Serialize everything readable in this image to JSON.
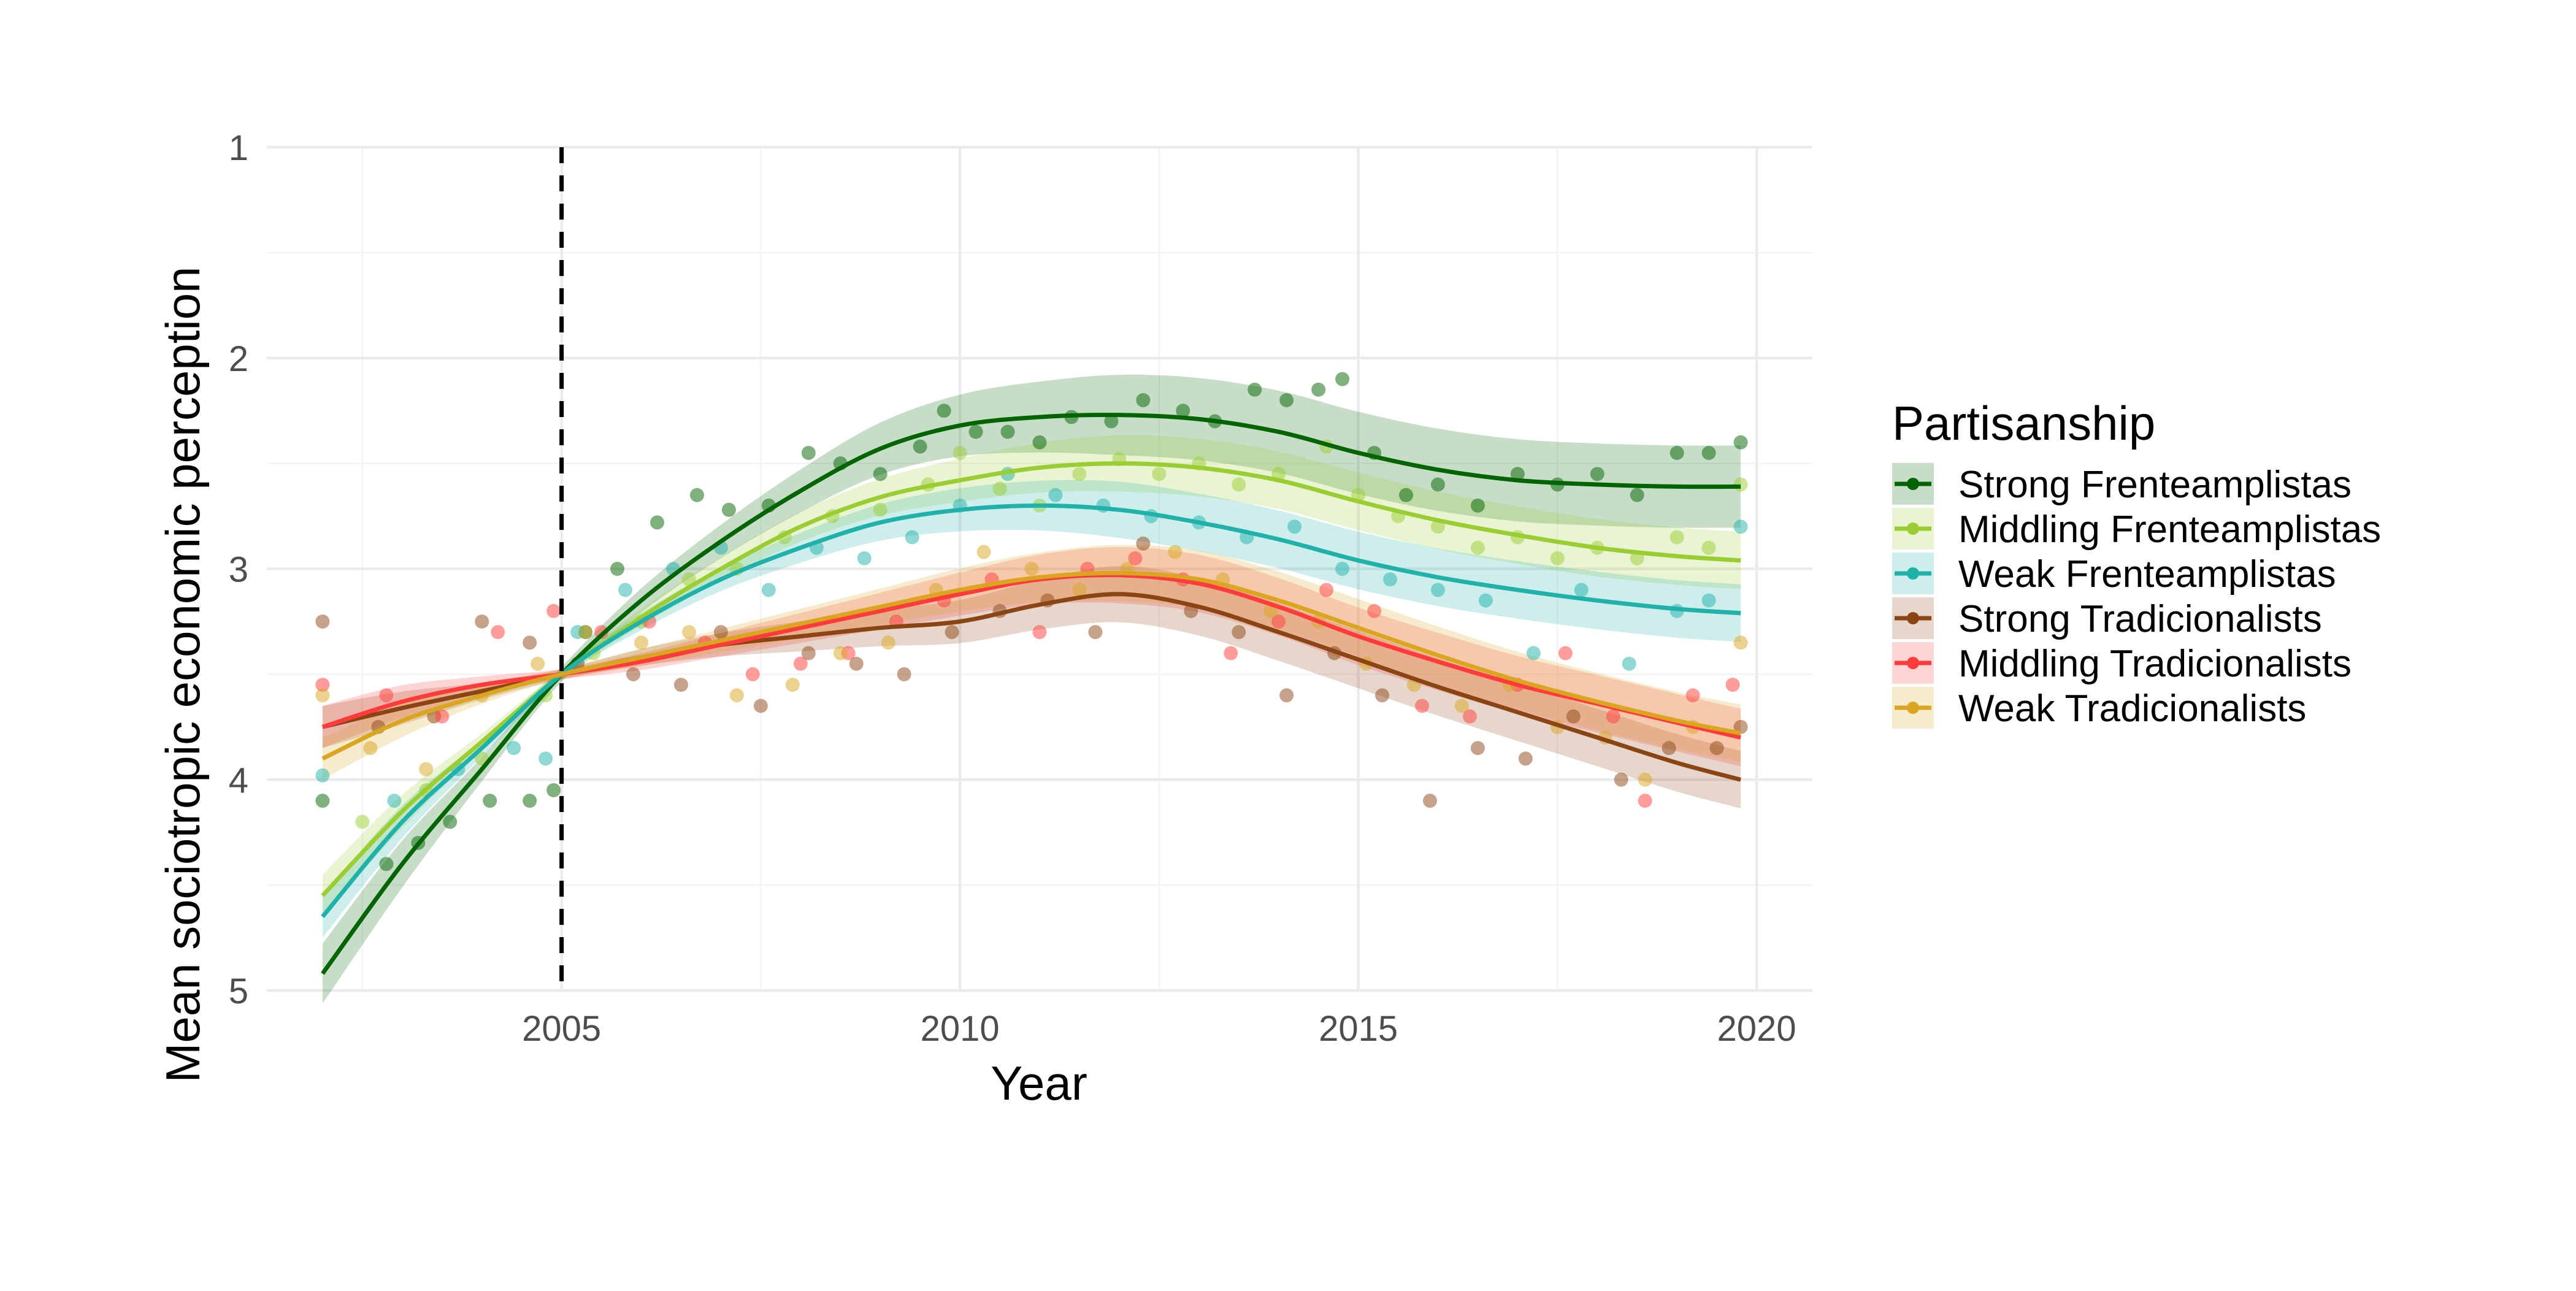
{
  "chart_data": {
    "type": "scatter",
    "xlabel": "Year",
    "ylabel": "Mean sociotropic economic perception",
    "xlim": [
      2001.3,
      2020.7
    ],
    "ylim": [
      1,
      5
    ],
    "y_reversed": true,
    "x_ticks": [
      2005,
      2010,
      2015,
      2020
    ],
    "y_ticks": [
      1,
      2,
      3,
      4,
      5
    ],
    "grid": true,
    "reference_line": {
      "x": 2005,
      "style": "dashed",
      "color": "#000000"
    },
    "legend": {
      "title": "Partisanship",
      "placement": "right"
    },
    "series": [
      {
        "name": "Strong Frenteamplistas",
        "color": "#006400",
        "smooth_x": [
          2002,
          2003,
          2004,
          2005,
          2006,
          2007,
          2008,
          2009,
          2010,
          2011,
          2012,
          2013,
          2014,
          2015,
          2016,
          2017,
          2018,
          2019,
          2019.8
        ],
        "smooth_y": [
          4.92,
          4.4,
          3.95,
          3.5,
          3.15,
          2.87,
          2.63,
          2.43,
          2.32,
          2.28,
          2.27,
          2.29,
          2.35,
          2.45,
          2.53,
          2.58,
          2.6,
          2.61,
          2.61
        ],
        "band": 0.1,
        "points": [
          [
            2002,
            4.1
          ],
          [
            2002.8,
            4.4
          ],
          [
            2003.2,
            4.3
          ],
          [
            2003.6,
            4.2
          ],
          [
            2004.1,
            4.1
          ],
          [
            2004.6,
            4.1
          ],
          [
            2004.9,
            4.05
          ],
          [
            2005.3,
            3.3
          ],
          [
            2005.7,
            3.0
          ],
          [
            2006.2,
            2.78
          ],
          [
            2006.7,
            2.65
          ],
          [
            2007.1,
            2.72
          ],
          [
            2007.6,
            2.7
          ],
          [
            2008.1,
            2.45
          ],
          [
            2008.5,
            2.5
          ],
          [
            2009.0,
            2.55
          ],
          [
            2009.5,
            2.42
          ],
          [
            2009.8,
            2.25
          ],
          [
            2010.2,
            2.35
          ],
          [
            2010.6,
            2.35
          ],
          [
            2011.0,
            2.4
          ],
          [
            2011.4,
            2.28
          ],
          [
            2011.9,
            2.3
          ],
          [
            2012.3,
            2.2
          ],
          [
            2012.8,
            2.25
          ],
          [
            2013.2,
            2.3
          ],
          [
            2013.7,
            2.15
          ],
          [
            2014.1,
            2.2
          ],
          [
            2014.5,
            2.15
          ],
          [
            2014.8,
            2.1
          ],
          [
            2015.2,
            2.45
          ],
          [
            2015.6,
            2.65
          ],
          [
            2016.0,
            2.6
          ],
          [
            2016.5,
            2.7
          ],
          [
            2017.0,
            2.55
          ],
          [
            2017.5,
            2.6
          ],
          [
            2018.0,
            2.55
          ],
          [
            2018.5,
            2.65
          ],
          [
            2019.0,
            2.45
          ],
          [
            2019.4,
            2.45
          ],
          [
            2019.8,
            2.4
          ]
        ]
      },
      {
        "name": "Middling Frenteamplistas",
        "color": "#9acd32",
        "smooth_x": [
          2002,
          2003,
          2004,
          2005,
          2006,
          2007,
          2008,
          2009,
          2010,
          2011,
          2012,
          2013,
          2014,
          2015,
          2016,
          2017,
          2018,
          2019,
          2019.8
        ],
        "smooth_y": [
          4.55,
          4.15,
          3.82,
          3.5,
          3.23,
          3.0,
          2.8,
          2.66,
          2.58,
          2.52,
          2.5,
          2.52,
          2.58,
          2.68,
          2.77,
          2.84,
          2.9,
          2.94,
          2.96
        ],
        "band": 0.07,
        "points": [
          [
            2002.5,
            4.2
          ],
          [
            2003.3,
            4.05
          ],
          [
            2004.0,
            3.9
          ],
          [
            2004.8,
            3.6
          ],
          [
            2005.4,
            3.4
          ],
          [
            2006.0,
            3.25
          ],
          [
            2006.6,
            3.05
          ],
          [
            2007.2,
            3.0
          ],
          [
            2007.8,
            2.85
          ],
          [
            2008.4,
            2.75
          ],
          [
            2009.0,
            2.72
          ],
          [
            2009.6,
            2.6
          ],
          [
            2010.0,
            2.45
          ],
          [
            2010.5,
            2.62
          ],
          [
            2011.0,
            2.7
          ],
          [
            2011.5,
            2.55
          ],
          [
            2012.0,
            2.48
          ],
          [
            2012.5,
            2.55
          ],
          [
            2013.0,
            2.5
          ],
          [
            2013.5,
            2.6
          ],
          [
            2014.0,
            2.55
          ],
          [
            2014.6,
            2.42
          ],
          [
            2015.0,
            2.65
          ],
          [
            2015.5,
            2.75
          ],
          [
            2016.0,
            2.8
          ],
          [
            2016.5,
            2.9
          ],
          [
            2017.0,
            2.85
          ],
          [
            2017.5,
            2.95
          ],
          [
            2018.0,
            2.9
          ],
          [
            2018.5,
            2.95
          ],
          [
            2019.0,
            2.85
          ],
          [
            2019.4,
            2.9
          ],
          [
            2019.8,
            2.6
          ]
        ]
      },
      {
        "name": "Weak Frenteamplistas",
        "color": "#20b2aa",
        "smooth_x": [
          2002,
          2003,
          2004,
          2005,
          2006,
          2007,
          2008,
          2009,
          2010,
          2011,
          2012,
          2013,
          2014,
          2015,
          2016,
          2017,
          2018,
          2019,
          2019.8
        ],
        "smooth_y": [
          4.65,
          4.2,
          3.85,
          3.5,
          3.25,
          3.05,
          2.9,
          2.78,
          2.72,
          2.7,
          2.72,
          2.78,
          2.86,
          2.96,
          3.04,
          3.1,
          3.15,
          3.19,
          3.21
        ],
        "band": 0.07,
        "points": [
          [
            2002,
            3.98
          ],
          [
            2002.9,
            4.1
          ],
          [
            2003.7,
            3.95
          ],
          [
            2004.4,
            3.85
          ],
          [
            2004.8,
            3.9
          ],
          [
            2005.2,
            3.3
          ],
          [
            2005.8,
            3.1
          ],
          [
            2006.4,
            3.0
          ],
          [
            2007.0,
            2.9
          ],
          [
            2007.6,
            3.1
          ],
          [
            2008.2,
            2.9
          ],
          [
            2008.8,
            2.95
          ],
          [
            2009.4,
            2.85
          ],
          [
            2010.0,
            2.7
          ],
          [
            2010.6,
            2.55
          ],
          [
            2011.2,
            2.65
          ],
          [
            2011.8,
            2.7
          ],
          [
            2012.4,
            2.75
          ],
          [
            2013.0,
            2.78
          ],
          [
            2013.6,
            2.85
          ],
          [
            2014.2,
            2.8
          ],
          [
            2014.8,
            3.0
          ],
          [
            2015.4,
            3.05
          ],
          [
            2016.0,
            3.1
          ],
          [
            2016.6,
            3.15
          ],
          [
            2017.2,
            3.4
          ],
          [
            2017.8,
            3.1
          ],
          [
            2018.4,
            3.45
          ],
          [
            2019.0,
            3.2
          ],
          [
            2019.4,
            3.15
          ],
          [
            2019.8,
            2.8
          ]
        ]
      },
      {
        "name": "Strong Tradicionalists",
        "color": "#8b4513",
        "smooth_x": [
          2002,
          2003,
          2004,
          2005,
          2006,
          2007,
          2008,
          2009,
          2010,
          2011,
          2012,
          2013,
          2014,
          2015,
          2016,
          2017,
          2018,
          2019,
          2019.8
        ],
        "smooth_y": [
          3.75,
          3.66,
          3.58,
          3.5,
          3.42,
          3.36,
          3.32,
          3.28,
          3.25,
          3.17,
          3.12,
          3.18,
          3.3,
          3.43,
          3.56,
          3.68,
          3.8,
          3.92,
          4.0
        ],
        "band": 0.07,
        "points": [
          [
            2002,
            3.25
          ],
          [
            2002.7,
            3.75
          ],
          [
            2003.4,
            3.7
          ],
          [
            2004.0,
            3.25
          ],
          [
            2004.6,
            3.35
          ],
          [
            2005.2,
            3.45
          ],
          [
            2005.9,
            3.5
          ],
          [
            2006.5,
            3.55
          ],
          [
            2007.0,
            3.3
          ],
          [
            2007.5,
            3.65
          ],
          [
            2008.1,
            3.4
          ],
          [
            2008.7,
            3.45
          ],
          [
            2009.3,
            3.5
          ],
          [
            2009.9,
            3.3
          ],
          [
            2010.5,
            3.2
          ],
          [
            2011.1,
            3.15
          ],
          [
            2011.7,
            3.3
          ],
          [
            2012.3,
            2.88
          ],
          [
            2012.9,
            3.2
          ],
          [
            2013.5,
            3.3
          ],
          [
            2014.1,
            3.6
          ],
          [
            2014.7,
            3.4
          ],
          [
            2015.3,
            3.6
          ],
          [
            2015.9,
            4.1
          ],
          [
            2016.5,
            3.85
          ],
          [
            2017.1,
            3.9
          ],
          [
            2017.7,
            3.7
          ],
          [
            2018.3,
            4.0
          ],
          [
            2018.9,
            3.85
          ],
          [
            2019.5,
            3.85
          ],
          [
            2019.8,
            3.75
          ]
        ]
      },
      {
        "name": "Middling Tradicionalists",
        "color": "#ff3b3b",
        "smooth_x": [
          2002,
          2003,
          2004,
          2005,
          2006,
          2007,
          2008,
          2009,
          2010,
          2011,
          2012,
          2013,
          2014,
          2015,
          2016,
          2017,
          2018,
          2019,
          2019.8
        ],
        "smooth_y": [
          3.75,
          3.63,
          3.55,
          3.5,
          3.44,
          3.36,
          3.28,
          3.2,
          3.12,
          3.05,
          3.03,
          3.07,
          3.18,
          3.32,
          3.44,
          3.55,
          3.64,
          3.73,
          3.8
        ],
        "band": 0.07,
        "points": [
          [
            2002,
            3.55
          ],
          [
            2002.8,
            3.6
          ],
          [
            2003.5,
            3.7
          ],
          [
            2004.2,
            3.3
          ],
          [
            2004.9,
            3.2
          ],
          [
            2005.5,
            3.3
          ],
          [
            2006.1,
            3.25
          ],
          [
            2006.8,
            3.35
          ],
          [
            2007.4,
            3.5
          ],
          [
            2008.0,
            3.45
          ],
          [
            2008.6,
            3.4
          ],
          [
            2009.2,
            3.25
          ],
          [
            2009.8,
            3.15
          ],
          [
            2010.4,
            3.05
          ],
          [
            2011.0,
            3.3
          ],
          [
            2011.6,
            3.0
          ],
          [
            2012.2,
            2.95
          ],
          [
            2012.8,
            3.05
          ],
          [
            2013.4,
            3.4
          ],
          [
            2014.0,
            3.25
          ],
          [
            2014.6,
            3.1
          ],
          [
            2015.2,
            3.2
          ],
          [
            2015.8,
            3.65
          ],
          [
            2016.4,
            3.7
          ],
          [
            2017.0,
            3.55
          ],
          [
            2017.6,
            3.4
          ],
          [
            2018.2,
            3.7
          ],
          [
            2018.6,
            4.1
          ],
          [
            2019.2,
            3.6
          ],
          [
            2019.7,
            3.55
          ]
        ]
      },
      {
        "name": "Weak Tradicionalists",
        "color": "#daa520",
        "smooth_x": [
          2002,
          2003,
          2004,
          2005,
          2006,
          2007,
          2008,
          2009,
          2010,
          2011,
          2012,
          2013,
          2014,
          2015,
          2016,
          2017,
          2018,
          2019,
          2019.8
        ],
        "smooth_y": [
          3.9,
          3.72,
          3.6,
          3.5,
          3.42,
          3.34,
          3.26,
          3.18,
          3.1,
          3.04,
          3.02,
          3.05,
          3.15,
          3.28,
          3.41,
          3.53,
          3.63,
          3.72,
          3.78
        ],
        "band": 0.07,
        "points": [
          [
            2002,
            3.6
          ],
          [
            2002.6,
            3.85
          ],
          [
            2003.3,
            3.95
          ],
          [
            2004.0,
            3.6
          ],
          [
            2004.7,
            3.45
          ],
          [
            2005.3,
            3.3
          ],
          [
            2006.0,
            3.35
          ],
          [
            2006.6,
            3.3
          ],
          [
            2007.2,
            3.6
          ],
          [
            2007.9,
            3.55
          ],
          [
            2008.5,
            3.4
          ],
          [
            2009.1,
            3.35
          ],
          [
            2009.7,
            3.1
          ],
          [
            2010.3,
            2.92
          ],
          [
            2010.9,
            3.0
          ],
          [
            2011.5,
            3.1
          ],
          [
            2012.1,
            3.0
          ],
          [
            2012.7,
            2.92
          ],
          [
            2013.3,
            3.05
          ],
          [
            2013.9,
            3.2
          ],
          [
            2014.5,
            3.25
          ],
          [
            2015.1,
            3.45
          ],
          [
            2015.7,
            3.55
          ],
          [
            2016.3,
            3.65
          ],
          [
            2016.9,
            3.55
          ],
          [
            2017.5,
            3.75
          ],
          [
            2018.1,
            3.8
          ],
          [
            2018.6,
            4.0
          ],
          [
            2019.2,
            3.75
          ],
          [
            2019.8,
            3.35
          ]
        ]
      }
    ]
  }
}
